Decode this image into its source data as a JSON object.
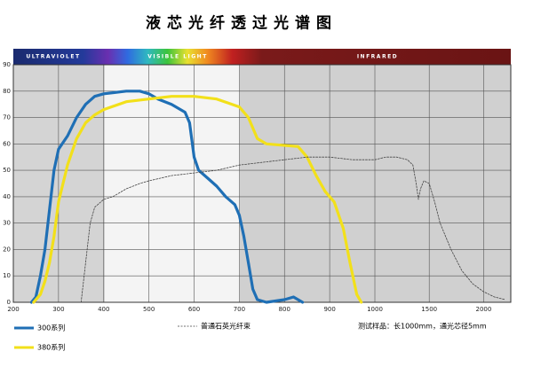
{
  "chart_data": {
    "type": "line",
    "title": "液芯光纤透过光谱图",
    "bands": [
      "ULTRAVIOLET",
      "VISIBLE LIGHT",
      "INFRARED"
    ],
    "xscale": "piecewise-linear",
    "xbreak": 1000,
    "xlim": [
      200,
      2250
    ],
    "ylim": [
      0,
      90
    ],
    "xticks": [
      200,
      300,
      400,
      500,
      600,
      700,
      800,
      900,
      1000,
      1500,
      2000
    ],
    "yticks": [
      0,
      10,
      20,
      30,
      40,
      50,
      60,
      70,
      80,
      90
    ],
    "grid": true,
    "note": "测试样品：长1000mm，通光芯径5mm",
    "series": [
      {
        "name": "300系列",
        "color": "#1f6fb5",
        "style": "solid",
        "x": [
          240,
          250,
          260,
          270,
          280,
          290,
          300,
          320,
          340,
          360,
          380,
          400,
          450,
          480,
          500,
          520,
          550,
          580,
          590,
          600,
          610,
          630,
          650,
          670,
          690,
          700,
          710,
          720,
          730,
          740,
          760,
          800,
          820,
          840
        ],
        "values": [
          0,
          2,
          10,
          20,
          35,
          50,
          58,
          63,
          70,
          75,
          78,
          79,
          80,
          80,
          79,
          77,
          75,
          72,
          68,
          55,
          50,
          47,
          44,
          40,
          37,
          33,
          25,
          15,
          5,
          1,
          0,
          1,
          2,
          0
        ]
      },
      {
        "name": "380系列",
        "color": "#f2e01a",
        "style": "solid",
        "x": [
          245,
          260,
          270,
          280,
          290,
          300,
          320,
          340,
          360,
          380,
          400,
          450,
          500,
          550,
          600,
          650,
          700,
          720,
          740,
          760,
          830,
          850,
          870,
          890,
          910,
          930,
          945,
          960,
          970
        ],
        "values": [
          0,
          3,
          8,
          15,
          25,
          38,
          52,
          62,
          68,
          71,
          73,
          76,
          77,
          78,
          78,
          77,
          74,
          70,
          62,
          60,
          59,
          55,
          48,
          42,
          38,
          28,
          15,
          3,
          0
        ]
      },
      {
        "name": "普通石英光纤束",
        "color": "#444444",
        "style": "dashed",
        "x": [
          350,
          360,
          370,
          380,
          400,
          420,
          450,
          480,
          500,
          550,
          600,
          650,
          700,
          750,
          800,
          850,
          900,
          950,
          1000,
          1100,
          1200,
          1300,
          1350,
          1380,
          1400,
          1420,
          1450,
          1500,
          1550,
          1600,
          1700,
          1800,
          1900,
          2000,
          2100,
          2200
        ],
        "values": [
          0,
          15,
          30,
          36,
          39,
          40,
          43,
          45,
          46,
          48,
          49,
          50,
          52,
          53,
          54,
          55,
          55,
          54,
          54,
          55,
          55,
          54,
          52,
          45,
          39,
          43,
          46,
          45,
          38,
          30,
          20,
          12,
          7,
          4,
          2,
          1
        ]
      }
    ]
  }
}
